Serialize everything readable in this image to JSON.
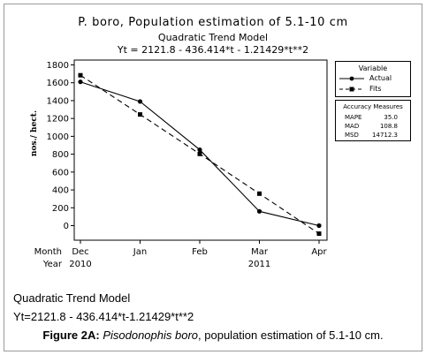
{
  "chart_data": {
    "type": "line",
    "title": "P. boro, Population estimation of 5.1-10 cm",
    "subtitle": "Quadratic Trend Model",
    "equation": "Yt = 2121.8 - 436.414*t - 1.21429*t**2",
    "ylabel": "nos./ hect.",
    "x_tick_rows": [
      {
        "label": "Month",
        "ticks": [
          "Dec",
          "Jan",
          "Feb",
          "Mar",
          "Apr"
        ]
      },
      {
        "label": "Year",
        "ticks": [
          "2010",
          "",
          "",
          "2011",
          ""
        ]
      }
    ],
    "categories": [
      "Dec",
      "Jan",
      "Feb",
      "Mar",
      "Apr"
    ],
    "y_ticks": [
      0,
      200,
      400,
      600,
      800,
      1000,
      1200,
      1400,
      1600,
      1800
    ],
    "ylim": [
      -130,
      1850
    ],
    "series": [
      {
        "name": "Actual",
        "style": "solid",
        "marker": "circle",
        "values": [
          1610,
          1390,
          850,
          160,
          0
        ]
      },
      {
        "name": "Fits",
        "style": "dashed",
        "marker": "square",
        "values": [
          1684,
          1245,
          803,
          358,
          -90
        ]
      }
    ],
    "legend": {
      "title": "Variable",
      "placement": "right"
    },
    "accuracy": {
      "title": "Accuracy Measures",
      "rows": [
        {
          "label": "MAPE",
          "value": "35.0"
        },
        {
          "label": "MAD",
          "value": "108.8"
        },
        {
          "label": "MSD",
          "value": "14712.3"
        }
      ]
    }
  },
  "caption": {
    "line1": "Quadratic Trend Model",
    "line2": "Yt=2121.8 - 436.414*t-1.21429*t**2",
    "figure_label": "Figure 2A:",
    "species": "Pisodonophis boro",
    "rest": ", population estimation of 5.1-10 cm."
  }
}
